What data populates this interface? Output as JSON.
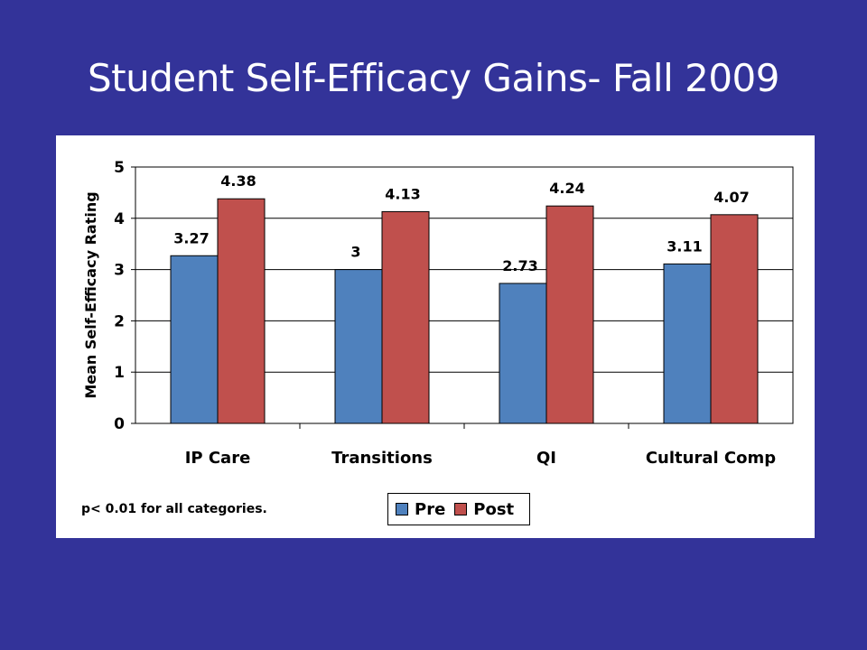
{
  "slide": {
    "title": "Student Self-Efficacy Gains- Fall 2009",
    "footnote": "p< 0.01 for all categories."
  },
  "chart_data": {
    "type": "bar",
    "title": "",
    "xlabel": "",
    "ylabel": "Mean Self-Efficacy Rating",
    "ylim": [
      0,
      5
    ],
    "yticks": [
      "0",
      "1",
      "2",
      "3",
      "4",
      "5"
    ],
    "categories": [
      "IP Care",
      "Transitions",
      "QI",
      "Cultural Comp"
    ],
    "series": [
      {
        "name": "Pre",
        "color": "#4F81BD",
        "values": [
          3.27,
          3,
          2.73,
          3.11
        ],
        "labels": [
          "3.27",
          "3",
          "2.73",
          "3.11"
        ]
      },
      {
        "name": "Post",
        "color": "#C0504D",
        "values": [
          4.38,
          4.13,
          4.24,
          4.07
        ],
        "labels": [
          "4.38",
          "4.13",
          "4.24",
          "4.07"
        ]
      }
    ],
    "grid": true,
    "legend_position": "bottom"
  }
}
